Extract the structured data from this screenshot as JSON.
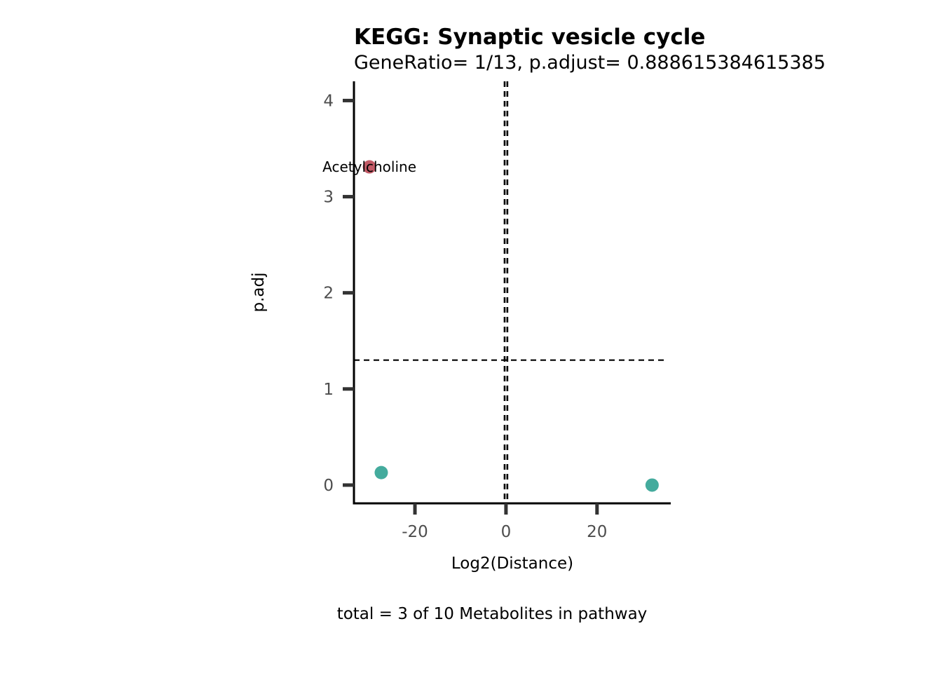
{
  "colors": {
    "up": "#C25B67",
    "down": "#44AB9D",
    "axis": "#000000",
    "tick": "#333333",
    "tick_label": "#4d4d4d"
  },
  "chart_data": {
    "type": "scatter",
    "title": "KEGG: Synaptic vesicle cycle",
    "subtitle": "GeneRatio= 1/13, p.adjust= 0.888615384615385",
    "xlabel": "Log2(Distance)",
    "ylabel": "p.adj",
    "caption": "total = 3 of 10 Metabolites in pathway",
    "xlim": [
      -33.4,
      36.2
    ],
    "ylim": [
      -0.19,
      4.2
    ],
    "x_ticks": [
      -20,
      0,
      20
    ],
    "x_tick_labels": [
      "-20",
      "0",
      "20"
    ],
    "y_ticks": [
      0,
      1,
      2,
      3,
      4
    ],
    "y_tick_labels": [
      "0",
      "1",
      "2",
      "3",
      "4"
    ],
    "grid": false,
    "legend": "none",
    "reference_lines": {
      "vertical": [
        -0.3,
        0.3
      ],
      "horizontal": [
        1.3
      ]
    },
    "points": [
      {
        "x": -30.0,
        "y": 3.31,
        "group": "up",
        "label": "Acetylcholine"
      },
      {
        "x": -27.4,
        "y": 0.13,
        "group": "down",
        "label": ""
      },
      {
        "x": 32.1,
        "y": 0.0,
        "group": "down",
        "label": ""
      }
    ]
  }
}
